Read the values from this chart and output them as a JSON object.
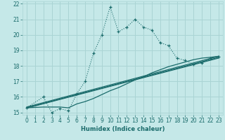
{
  "xlabel": "Humidex (Indice chaleur)",
  "background_color": "#c5e8e8",
  "grid_color": "#aad4d4",
  "line_color": "#1a6b6b",
  "xlim": [
    -0.5,
    23.5
  ],
  "ylim": [
    14.85,
    22.15
  ],
  "xticks": [
    0,
    1,
    2,
    3,
    4,
    5,
    6,
    7,
    8,
    9,
    10,
    11,
    12,
    13,
    14,
    15,
    16,
    17,
    18,
    19,
    20,
    21,
    22,
    23
  ],
  "yticks": [
    15,
    16,
    17,
    18,
    19,
    20,
    21,
    22
  ],
  "curve1_x": [
    0,
    2,
    3,
    4,
    5,
    6,
    7,
    8,
    9,
    10,
    11,
    12,
    13,
    14,
    15,
    16,
    17,
    18,
    19,
    20,
    21,
    22,
    23
  ],
  "curve1_y": [
    15.3,
    16.0,
    15.0,
    15.25,
    15.1,
    16.2,
    17.0,
    18.8,
    20.0,
    21.8,
    20.2,
    20.5,
    21.0,
    20.5,
    20.3,
    19.5,
    19.3,
    18.5,
    18.35,
    18.1,
    18.2,
    18.5,
    18.6
  ],
  "curve2_x": [
    0,
    2,
    3,
    4,
    5,
    6,
    7,
    8,
    9,
    10,
    11,
    12,
    13,
    14,
    15,
    16,
    17,
    18,
    19,
    20,
    21,
    22,
    23
  ],
  "curve2_y": [
    15.3,
    15.35,
    15.35,
    15.35,
    15.3,
    15.55,
    15.7,
    15.9,
    16.15,
    16.4,
    16.6,
    16.85,
    17.1,
    17.3,
    17.55,
    17.75,
    17.95,
    18.1,
    18.25,
    18.4,
    18.5,
    18.55,
    18.62
  ],
  "curve3_x": [
    0,
    23
  ],
  "curve3_y": [
    15.3,
    18.55
  ],
  "curve4_x": [
    0,
    23
  ],
  "curve4_y": [
    15.35,
    18.62
  ],
  "curve5_x": [
    0,
    23
  ],
  "curve5_y": [
    15.28,
    18.5
  ]
}
